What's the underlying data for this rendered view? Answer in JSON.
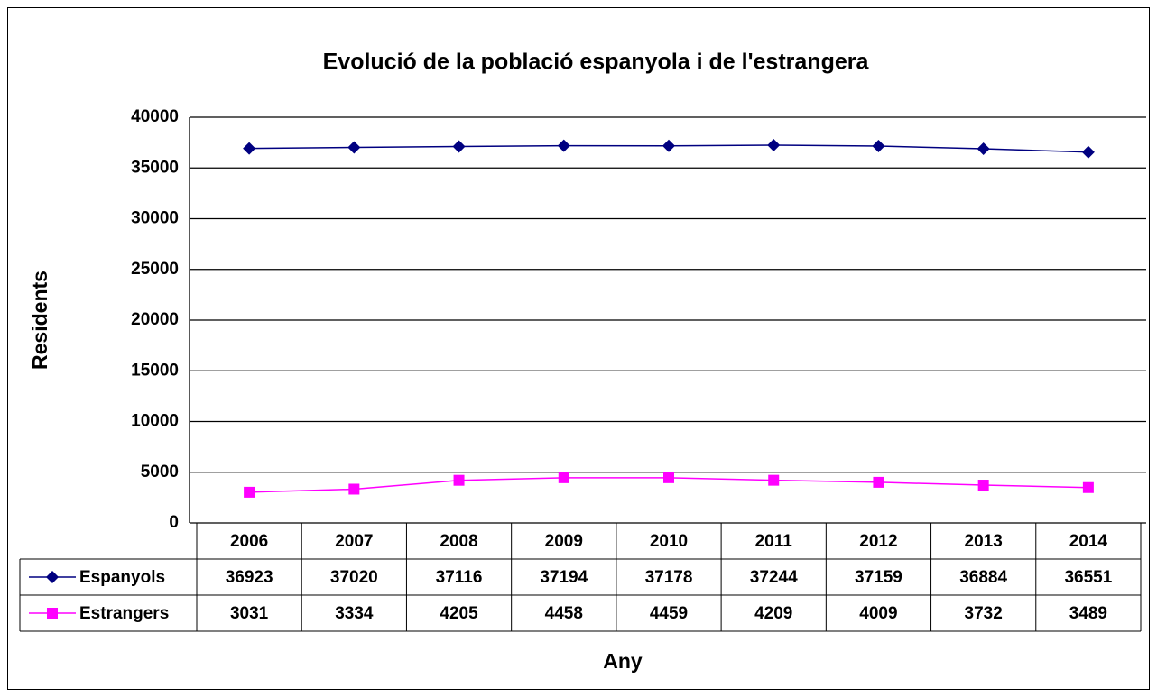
{
  "chart_data": {
    "type": "line",
    "title": "Evolució de la població espanyola i de l'estrangera",
    "x_label": "Any",
    "y_label": "Residents",
    "categories": [
      "2006",
      "2007",
      "2008",
      "2009",
      "2010",
      "2011",
      "2012",
      "2013",
      "2014"
    ],
    "series": [
      {
        "name": "Espanyols",
        "color": "#000080",
        "marker": "diamond",
        "values": [
          36923,
          37020,
          37116,
          37194,
          37178,
          37244,
          37159,
          36884,
          36551
        ]
      },
      {
        "name": "Estrangers",
        "color": "#ff00ff",
        "marker": "square",
        "values": [
          3031,
          3334,
          4205,
          4458,
          4459,
          4209,
          4009,
          3732,
          3489
        ]
      }
    ],
    "ylim": [
      0,
      40000
    ],
    "yticks": [
      0,
      5000,
      10000,
      15000,
      20000,
      25000,
      30000,
      35000,
      40000
    ],
    "grid": true
  }
}
